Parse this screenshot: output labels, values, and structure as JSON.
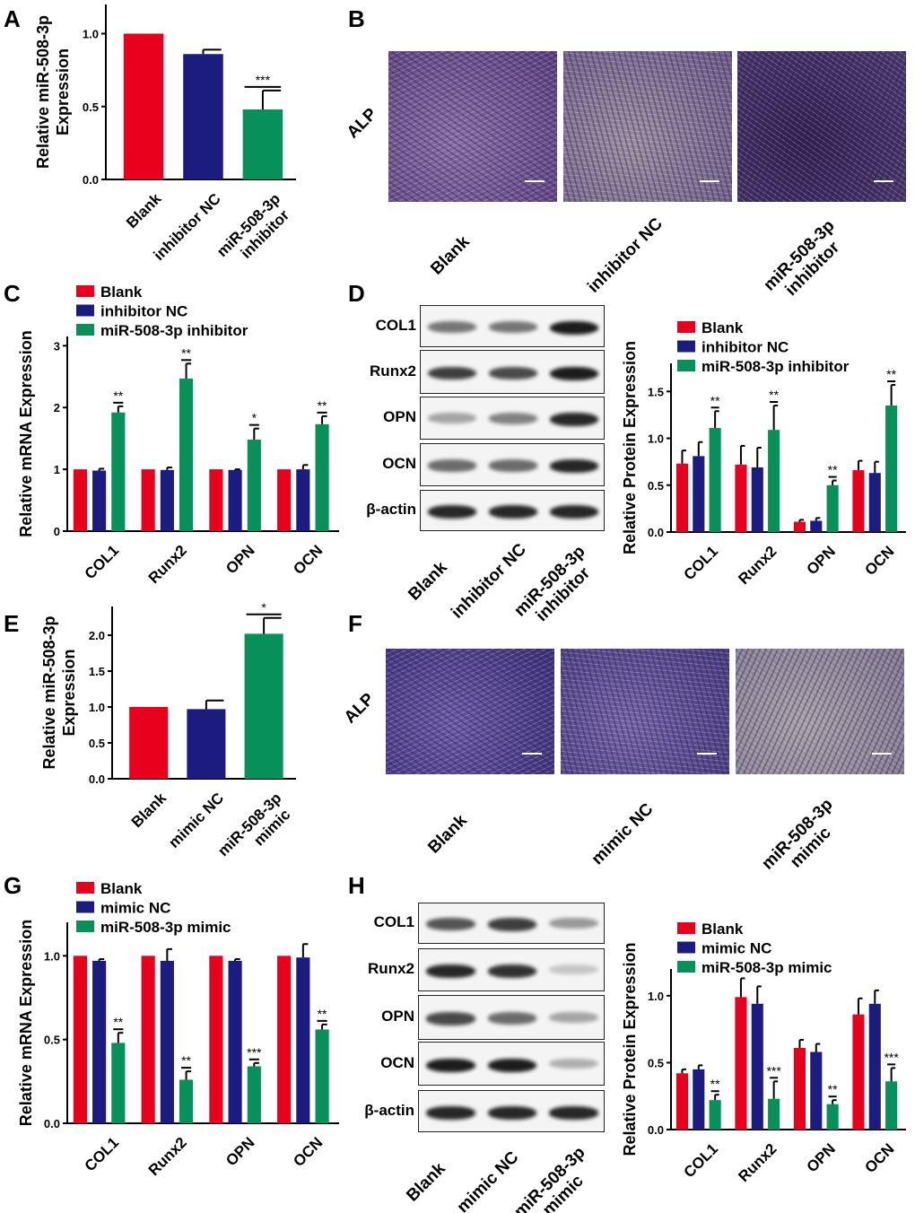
{
  "panels": {
    "A": "A",
    "B": "B",
    "C": "C",
    "D": "D",
    "E": "E",
    "F": "F",
    "G": "G",
    "H": "H"
  },
  "colors": {
    "blank": "#e8001c",
    "nc": "#1c1c80",
    "treat": "#07905a"
  },
  "panel_B": {
    "row_label": "ALP",
    "images": [
      {
        "label": [
          "Blank"
        ]
      },
      {
        "label": [
          "inhibitor NC"
        ]
      },
      {
        "label": [
          "miR-508-3p",
          "inhibitor"
        ]
      }
    ]
  },
  "panel_F": {
    "row_label": "ALP",
    "images": [
      {
        "label": [
          "Blank"
        ]
      },
      {
        "label": [
          "mimic NC"
        ]
      },
      {
        "label": [
          "miR-508-3p",
          "mimic"
        ]
      }
    ]
  },
  "panel_D_blot": {
    "rows": [
      "COL1",
      "Runx2",
      "OPN",
      "OCN",
      "β-actin"
    ],
    "lanes": [
      [
        "Blank"
      ],
      [
        "inhibitor NC"
      ],
      [
        "miR-508-3p",
        "inhibitor"
      ]
    ],
    "band_intensity": [
      [
        0.55,
        0.55,
        0.95
      ],
      [
        0.8,
        0.75,
        0.95
      ],
      [
        0.35,
        0.5,
        0.9
      ],
      [
        0.6,
        0.6,
        0.9
      ],
      [
        0.9,
        0.9,
        0.9
      ]
    ]
  },
  "panel_H_blot": {
    "rows": [
      "COL1",
      "Runx2",
      "OPN",
      "OCN",
      "β-actin"
    ],
    "lanes": [
      [
        "Blank"
      ],
      [
        "mimic NC"
      ],
      [
        "miR-508-3p",
        "mimic"
      ]
    ],
    "band_intensity": [
      [
        0.7,
        0.8,
        0.4
      ],
      [
        0.9,
        0.85,
        0.2
      ],
      [
        0.75,
        0.6,
        0.35
      ],
      [
        0.95,
        0.95,
        0.3
      ],
      [
        0.9,
        0.9,
        0.9
      ]
    ]
  },
  "chart_data": [
    {
      "id": "A",
      "type": "bar",
      "ylabel": [
        "Relative miR-508-3p",
        "Expression"
      ],
      "ylim": [
        0,
        1.2
      ],
      "yticks": [
        "0.0",
        "0.5",
        "1.0"
      ],
      "ytick_values": [
        0,
        0.5,
        1.0
      ],
      "categories": [
        [
          "Blank"
        ],
        [
          "inhibitor NC"
        ],
        [
          "miR-508-3p",
          "inhibitor"
        ]
      ],
      "values": [
        1.0,
        0.86,
        0.48
      ],
      "errors": [
        0,
        0.03,
        0.13
      ],
      "significance": [
        "",
        "",
        "***"
      ],
      "bar_colors": [
        "#e8001c",
        "#1c1c80",
        "#07905a"
      ]
    },
    {
      "id": "C",
      "type": "bar",
      "ylabel": [
        "Relative mRNA Expression"
      ],
      "ylim": [
        0,
        3.15
      ],
      "yticks": [
        "0",
        "1",
        "2",
        "3"
      ],
      "ytick_values": [
        0,
        1,
        2,
        3
      ],
      "categories": [
        [
          "COL1"
        ],
        [
          "Runx2"
        ],
        [
          "OPN"
        ],
        [
          "OCN"
        ]
      ],
      "legend_placement": "top-left",
      "series": [
        {
          "name": "Blank",
          "color": "#e8001c",
          "values": [
            1,
            1,
            1,
            1
          ],
          "errors": [
            0,
            0,
            0,
            0
          ],
          "significance": [
            "",
            "",
            "",
            ""
          ]
        },
        {
          "name": "inhibitor NC",
          "color": "#1c1c80",
          "values": [
            0.98,
            0.99,
            0.99,
            1.0
          ],
          "errors": [
            0.03,
            0.04,
            0.01,
            0.07
          ],
          "significance": [
            "",
            "",
            "",
            ""
          ]
        },
        {
          "name": "miR-508-3p inhibitor",
          "color": "#07905a",
          "values": [
            1.92,
            2.47,
            1.48,
            1.73
          ],
          "errors": [
            0.1,
            0.24,
            0.18,
            0.13
          ],
          "significance": [
            "**",
            "**",
            "*",
            "**"
          ]
        }
      ]
    },
    {
      "id": "D",
      "type": "bar",
      "ylabel": [
        "Relative Protein Expression"
      ],
      "ylim": [
        0,
        1.8
      ],
      "yticks": [
        "0.0",
        "0.5",
        "1.0",
        "1.5"
      ],
      "ytick_values": [
        0,
        0.5,
        1.0,
        1.5
      ],
      "categories": [
        [
          "COL1"
        ],
        [
          "Runx2"
        ],
        [
          "OPN"
        ],
        [
          "OCN"
        ]
      ],
      "legend_placement": "top",
      "series": [
        {
          "name": "Blank",
          "color": "#e8001c",
          "values": [
            0.73,
            0.72,
            0.11,
            0.66
          ],
          "errors": [
            0.14,
            0.2,
            0.02,
            0.1
          ],
          "significance": [
            "",
            "",
            "",
            ""
          ]
        },
        {
          "name": "inhibitor NC",
          "color": "#1c1c80",
          "values": [
            0.81,
            0.69,
            0.12,
            0.63
          ],
          "errors": [
            0.15,
            0.21,
            0.03,
            0.12
          ],
          "significance": [
            "",
            "",
            "",
            ""
          ]
        },
        {
          "name": "miR-508-3p inhibitor",
          "color": "#07905a",
          "values": [
            1.11,
            1.09,
            0.5,
            1.35
          ],
          "errors": [
            0.18,
            0.26,
            0.05,
            0.22
          ],
          "significance": [
            "**",
            "**",
            "**",
            "**"
          ]
        }
      ]
    },
    {
      "id": "E",
      "type": "bar",
      "ylabel": [
        "Relative miR-508-3p",
        "Expression"
      ],
      "ylim": [
        0,
        2.4
      ],
      "yticks": [
        "0.0",
        "0.5",
        "1.0",
        "1.5",
        "2.0"
      ],
      "ytick_values": [
        0,
        0.5,
        1.0,
        1.5,
        2.0
      ],
      "categories": [
        [
          "Blank"
        ],
        [
          "mimic NC"
        ],
        [
          "miR-508-3p",
          "mimic"
        ]
      ],
      "values": [
        1.0,
        0.97,
        2.02
      ],
      "errors": [
        0,
        0.12,
        0.22
      ],
      "significance": [
        "",
        "",
        "*"
      ],
      "bar_colors": [
        "#e8001c",
        "#1c1c80",
        "#07905a"
      ]
    },
    {
      "id": "G",
      "type": "bar",
      "ylabel": [
        "Relative mRNA Expression"
      ],
      "ylim": [
        0,
        1.2
      ],
      "yticks": [
        "0.0",
        "0.5",
        "1.0"
      ],
      "ytick_values": [
        0,
        0.5,
        1.0
      ],
      "categories": [
        [
          "COL1"
        ],
        [
          "Runx2"
        ],
        [
          "OPN"
        ],
        [
          "OCN"
        ]
      ],
      "legend_placement": "top-left",
      "series": [
        {
          "name": "Blank",
          "color": "#e8001c",
          "values": [
            1,
            1,
            1,
            1
          ],
          "errors": [
            0,
            0,
            0,
            0
          ],
          "significance": [
            "",
            "",
            "",
            ""
          ]
        },
        {
          "name": "mimic NC",
          "color": "#1c1c80",
          "values": [
            0.97,
            0.97,
            0.97,
            0.99
          ],
          "errors": [
            0.01,
            0.07,
            0.01,
            0.08
          ],
          "significance": [
            "",
            "",
            "",
            ""
          ]
        },
        {
          "name": "miR-508-3p mimic",
          "color": "#07905a",
          "values": [
            0.48,
            0.26,
            0.34,
            0.56
          ],
          "errors": [
            0.06,
            0.05,
            0.02,
            0.03
          ],
          "significance": [
            "**",
            "**",
            "***",
            "**"
          ]
        }
      ]
    },
    {
      "id": "H",
      "type": "bar",
      "ylabel": [
        "Relative Protein Expression"
      ],
      "ylim": [
        0,
        1.2
      ],
      "yticks": [
        "0.0",
        "0.5",
        "1.0"
      ],
      "ytick_values": [
        0,
        0.5,
        1.0
      ],
      "categories": [
        [
          "COL1"
        ],
        [
          "Runx2"
        ],
        [
          "OPN"
        ],
        [
          "OCN"
        ]
      ],
      "legend_placement": "top",
      "series": [
        {
          "name": "Blank",
          "color": "#e8001c",
          "values": [
            0.42,
            0.99,
            0.61,
            0.86
          ],
          "errors": [
            0.03,
            0.14,
            0.06,
            0.12
          ],
          "significance": [
            "",
            "",
            "",
            ""
          ]
        },
        {
          "name": "mimic NC",
          "color": "#1c1c80",
          "values": [
            0.45,
            0.94,
            0.58,
            0.94
          ],
          "errors": [
            0.03,
            0.13,
            0.06,
            0.1
          ],
          "significance": [
            "",
            "",
            "",
            ""
          ]
        },
        {
          "name": "miR-508-3p mimic",
          "color": "#07905a",
          "values": [
            0.22,
            0.23,
            0.19,
            0.36
          ],
          "errors": [
            0.04,
            0.13,
            0.03,
            0.1
          ],
          "significance": [
            "**",
            "***",
            "**",
            "***"
          ]
        }
      ]
    }
  ]
}
